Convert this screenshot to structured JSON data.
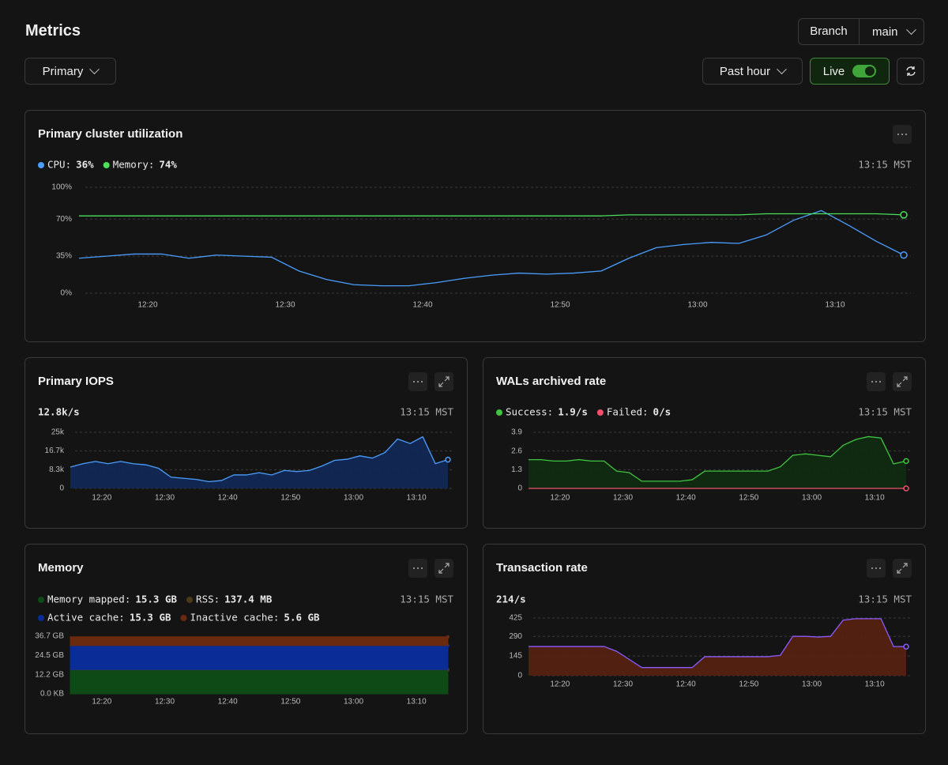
{
  "header": {
    "title": "Metrics",
    "branch_label": "Branch",
    "branch": "main",
    "instance": "Primary",
    "range": "Past hour",
    "live": "Live"
  },
  "chart_data": [
    {
      "type": "line",
      "title": "Primary cluster utilization",
      "timestamp": "13:15 MST",
      "grid": true,
      "x": [
        "12:15",
        "12:17",
        "12:19",
        "12:21",
        "12:23",
        "12:25",
        "12:27",
        "12:29",
        "12:31",
        "12:33",
        "12:35",
        "12:37",
        "12:39",
        "12:41",
        "12:43",
        "12:45",
        "12:47",
        "12:49",
        "12:51",
        "12:53",
        "12:55",
        "12:57",
        "12:59",
        "13:01",
        "13:03",
        "13:05",
        "13:07",
        "13:09",
        "13:11",
        "13:13",
        "13:15"
      ],
      "xlim": [
        "12:15",
        "13:15"
      ],
      "xticks": [
        "12:20",
        "12:30",
        "12:40",
        "12:50",
        "13:00",
        "13:10"
      ],
      "ylim": [
        0,
        100
      ],
      "yticks": [
        {
          "value": 0,
          "label": "0%"
        },
        {
          "value": 35,
          "label": "35%"
        },
        {
          "value": 70,
          "label": "70%"
        },
        {
          "value": 100,
          "label": "100%"
        }
      ],
      "series": [
        {
          "name": "CPU:",
          "current": "36%",
          "color": "#4a9eff",
          "values": [
            33,
            35,
            37,
            37,
            33,
            36,
            35,
            34,
            21,
            13,
            8,
            7,
            7,
            10,
            14,
            17,
            19,
            18,
            19,
            21,
            33,
            43,
            46,
            48,
            47,
            55,
            69,
            78,
            64,
            49,
            36
          ]
        },
        {
          "name": "Memory:",
          "current": "74%",
          "color": "#4ade5a",
          "values": [
            73,
            73,
            73,
            73,
            73,
            73,
            73,
            73,
            73,
            73,
            73,
            73,
            73,
            73,
            73,
            73,
            73,
            73,
            73,
            73,
            74,
            74,
            74,
            74,
            74,
            75,
            75,
            75,
            75,
            75,
            74
          ]
        }
      ]
    },
    {
      "type": "area",
      "title": "Primary IOPS",
      "timestamp": "13:15 MST",
      "grid": true,
      "x": [
        "12:15",
        "12:17",
        "12:19",
        "12:21",
        "12:23",
        "12:25",
        "12:27",
        "12:29",
        "12:31",
        "12:33",
        "12:35",
        "12:37",
        "12:39",
        "12:41",
        "12:43",
        "12:45",
        "12:47",
        "12:49",
        "12:51",
        "12:53",
        "12:55",
        "12:57",
        "12:59",
        "13:01",
        "13:03",
        "13:05",
        "13:07",
        "13:09",
        "13:11",
        "13:13",
        "13:15"
      ],
      "xlim": [
        "12:15",
        "13:15"
      ],
      "xticks": [
        "12:20",
        "12:30",
        "12:40",
        "12:50",
        "13:00",
        "13:10"
      ],
      "ylim": [
        0,
        25000
      ],
      "yticks": [
        0,
        {
          "value": 8300,
          "label": "8.3k"
        },
        {
          "value": 16700,
          "label": "16.7k"
        },
        {
          "value": 25000,
          "label": "25k"
        }
      ],
      "series": [
        {
          "current": "12.8k/s",
          "color": "#4a9eff",
          "fill": "#10295a",
          "values": [
            9500,
            11000,
            12000,
            11000,
            12000,
            11000,
            10500,
            9000,
            5000,
            4500,
            4000,
            3000,
            3500,
            6000,
            6000,
            7000,
            6000,
            8000,
            7500,
            8000,
            10000,
            12500,
            13000,
            14500,
            13500,
            16000,
            22000,
            20000,
            23000,
            11000,
            12800
          ]
        }
      ]
    },
    {
      "type": "area",
      "title": "WALs archived rate",
      "timestamp": "13:15 MST",
      "grid": true,
      "x": [
        "12:15",
        "12:17",
        "12:19",
        "12:21",
        "12:23",
        "12:25",
        "12:27",
        "12:29",
        "12:31",
        "12:33",
        "12:35",
        "12:37",
        "12:39",
        "12:41",
        "12:43",
        "12:45",
        "12:47",
        "12:49",
        "12:51",
        "12:53",
        "12:55",
        "12:57",
        "12:59",
        "13:01",
        "13:03",
        "13:05",
        "13:07",
        "13:09",
        "13:11",
        "13:13",
        "13:15"
      ],
      "xlim": [
        "12:15",
        "13:15"
      ],
      "xticks": [
        "12:20",
        "12:30",
        "12:40",
        "12:50",
        "13:00",
        "13:10"
      ],
      "ylim": [
        0,
        3.9
      ],
      "yticks": [
        0,
        1.3,
        2.6,
        3.9
      ],
      "series": [
        {
          "name": "Success:",
          "current": "1.9/s",
          "color": "#3ec43e",
          "fill": "#0f2e12",
          "values": [
            2.0,
            2.0,
            1.9,
            1.9,
            2.0,
            1.9,
            1.9,
            1.2,
            1.1,
            0.5,
            0.5,
            0.5,
            0.5,
            0.6,
            1.2,
            1.2,
            1.2,
            1.2,
            1.2,
            1.2,
            1.5,
            2.3,
            2.4,
            2.3,
            2.2,
            3.0,
            3.4,
            3.6,
            3.5,
            1.7,
            1.9
          ]
        },
        {
          "name": "Failed:",
          "current": "0/s",
          "color": "#f0506a",
          "values": [
            0,
            0,
            0,
            0,
            0,
            0,
            0,
            0,
            0,
            0,
            0,
            0,
            0,
            0,
            0,
            0,
            0,
            0,
            0,
            0,
            0,
            0,
            0,
            0,
            0,
            0,
            0,
            0,
            0,
            0,
            0
          ]
        }
      ]
    },
    {
      "type": "stacked_area",
      "title": "Memory",
      "timestamp": "13:15 MST",
      "grid": false,
      "x": [
        "12:15",
        "12:17",
        "12:19",
        "12:21",
        "12:23",
        "12:25",
        "12:27",
        "12:29",
        "12:31",
        "12:33",
        "12:35",
        "12:37",
        "12:39",
        "12:41",
        "12:43",
        "12:45",
        "12:47",
        "12:49",
        "12:51",
        "12:53",
        "12:55",
        "12:57",
        "12:59",
        "13:01",
        "13:03",
        "13:05",
        "13:07",
        "13:09",
        "13:11",
        "13:13",
        "13:15"
      ],
      "xlim": [
        "12:15",
        "13:15"
      ],
      "xticks": [
        "12:20",
        "12:30",
        "12:40",
        "12:50",
        "13:00",
        "13:10"
      ],
      "ylim": [
        0,
        36.7
      ],
      "yticks": [
        {
          "value": 0,
          "label": "0.0 KB"
        },
        {
          "value": 12.2,
          "label": "12.2 GB"
        },
        {
          "value": 24.5,
          "label": "24.5 GB"
        },
        {
          "value": 36.7,
          "label": "36.7 GB"
        }
      ],
      "series": [
        {
          "name": "Memory mapped:",
          "current": "15.3 GB",
          "color": "#0d4a16",
          "values": [
            15.3,
            15.3,
            15.3,
            15.3,
            15.3,
            15.3,
            15.3,
            15.3,
            15.3,
            15.3,
            15.3,
            15.3,
            15.3,
            15.3,
            15.3,
            15.3,
            15.3,
            15.3,
            15.3,
            15.3,
            15.3,
            15.3,
            15.3,
            15.3,
            15.3,
            15.3,
            15.3,
            15.3,
            15.3,
            15.3,
            15.3
          ]
        },
        {
          "name": "RSS:",
          "current": "137.4 MB",
          "color": "#4a3a1a",
          "values": [
            0.1374,
            0.1374,
            0.1374,
            0.1374,
            0.1374,
            0.1374,
            0.1374,
            0.1374,
            0.1374,
            0.1374,
            0.1374,
            0.1374,
            0.1374,
            0.1374,
            0.1374,
            0.1374,
            0.1374,
            0.1374,
            0.1374,
            0.1374,
            0.1374,
            0.1374,
            0.1374,
            0.1374,
            0.1374,
            0.1374,
            0.1374,
            0.1374,
            0.1374,
            0.1374,
            0.1374
          ]
        },
        {
          "name": "Active cache:",
          "current": "15.3 GB",
          "color": "#0a2c96",
          "values": [
            15.3,
            15.3,
            15.3,
            15.3,
            15.3,
            15.3,
            15.3,
            15.3,
            15.3,
            15.3,
            15.3,
            15.3,
            15.3,
            15.3,
            15.3,
            15.3,
            15.3,
            15.3,
            15.3,
            15.3,
            15.3,
            15.3,
            15.3,
            15.3,
            15.3,
            15.3,
            15.3,
            15.3,
            15.3,
            15.3,
            15.3
          ]
        },
        {
          "name": "Inactive cache:",
          "current": "5.6 GB",
          "color": "#6a2a10",
          "values": [
            5.6,
            5.6,
            5.6,
            5.6,
            5.6,
            5.6,
            5.6,
            5.6,
            5.6,
            5.6,
            5.6,
            5.6,
            5.6,
            5.6,
            5.6,
            5.6,
            5.6,
            5.6,
            5.6,
            5.6,
            5.6,
            5.6,
            5.6,
            5.6,
            5.6,
            5.6,
            5.6,
            5.6,
            5.6,
            5.6,
            5.6
          ]
        }
      ]
    },
    {
      "type": "area",
      "title": "Transaction rate",
      "timestamp": "13:15 MST",
      "grid": true,
      "x": [
        "12:15",
        "12:17",
        "12:19",
        "12:21",
        "12:23",
        "12:25",
        "12:27",
        "12:29",
        "12:31",
        "12:33",
        "12:35",
        "12:37",
        "12:39",
        "12:41",
        "12:43",
        "12:45",
        "12:47",
        "12:49",
        "12:51",
        "12:53",
        "12:55",
        "12:57",
        "12:59",
        "13:01",
        "13:03",
        "13:05",
        "13:07",
        "13:09",
        "13:11",
        "13:13",
        "13:15"
      ],
      "xlim": [
        "12:15",
        "13:15"
      ],
      "xticks": [
        "12:20",
        "12:30",
        "12:40",
        "12:50",
        "13:00",
        "13:10"
      ],
      "ylim": [
        0,
        425
      ],
      "yticks": [
        0,
        145,
        290,
        425
      ],
      "series": [
        {
          "current": "214/s",
          "color": "#8a5cff",
          "fill": "#5c2210",
          "values": [
            215,
            215,
            215,
            215,
            215,
            215,
            215,
            180,
            120,
            60,
            60,
            60,
            60,
            60,
            140,
            140,
            140,
            140,
            140,
            140,
            150,
            290,
            290,
            285,
            290,
            410,
            420,
            420,
            420,
            215,
            214
          ]
        }
      ]
    }
  ]
}
